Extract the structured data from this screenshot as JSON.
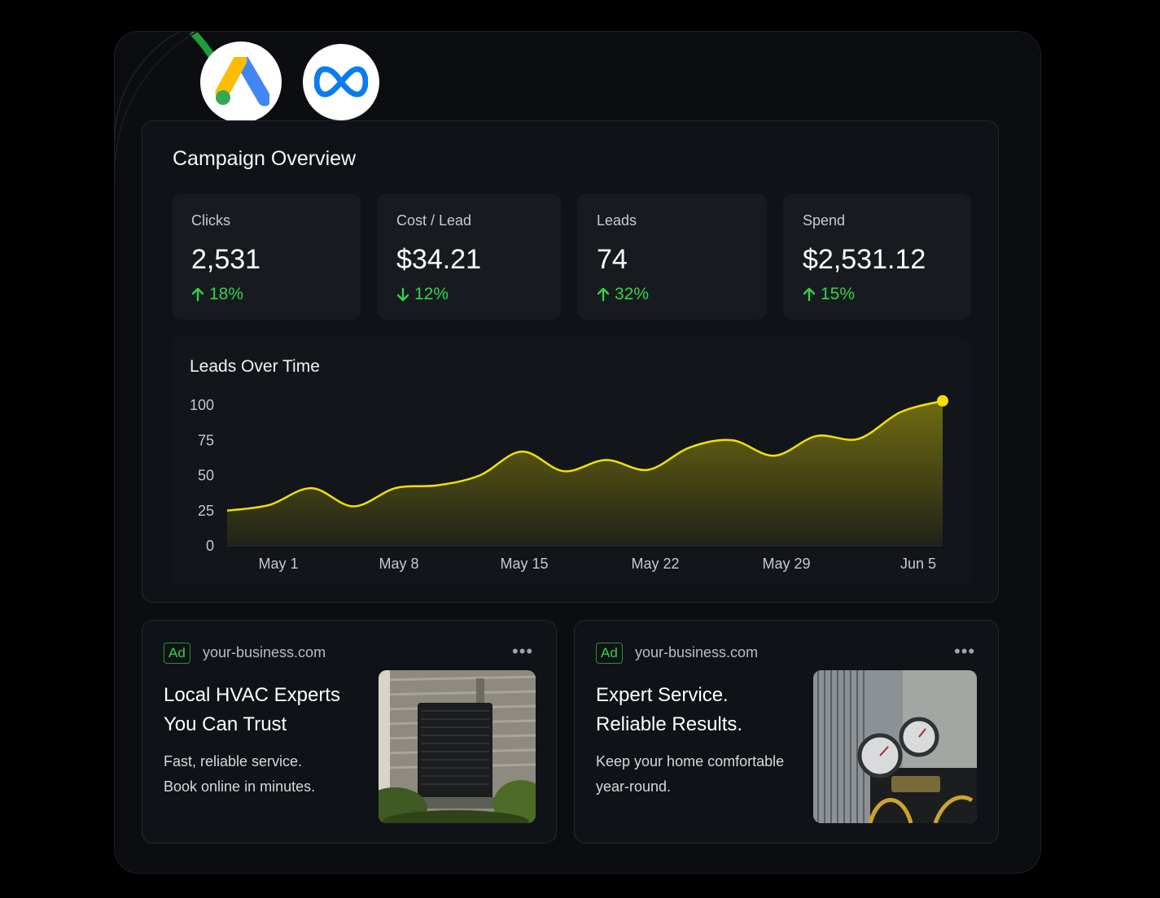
{
  "logos": [
    {
      "name": "google-ads-logo",
      "icon": "google-ads-icon"
    },
    {
      "name": "meta-logo",
      "icon": "meta-icon"
    }
  ],
  "overview": {
    "title": "Campaign Overview",
    "stats": [
      {
        "label": "Clicks",
        "value": "2,531",
        "delta": "18%",
        "direction": "up"
      },
      {
        "label": "Cost / Lead",
        "value": "$34.21",
        "delta": "12%",
        "direction": "down"
      },
      {
        "label": "Leads",
        "value": "74",
        "delta": "32%",
        "direction": "up"
      },
      {
        "label": "Spend",
        "value": "$2,531.12",
        "delta": "15%",
        "direction": "up"
      }
    ]
  },
  "chart": {
    "title": "Leads Over Time",
    "accent": "#f2e100",
    "positive_color": "#35d14b"
  },
  "chart_data": {
    "type": "area",
    "title": "Leads Over Time",
    "xlabel": "",
    "ylabel": "",
    "ylim": [
      0,
      100
    ],
    "yticks": [
      100,
      75,
      50,
      25,
      0
    ],
    "xtick_labels": [
      "May 1",
      "May 8",
      "May 15",
      "May 22",
      "May 29",
      "Jun 5"
    ],
    "grid": false,
    "legend": "none",
    "series": [
      {
        "values": [
          25,
          29,
          41,
          28,
          41,
          43,
          50,
          67,
          53,
          61,
          54,
          70,
          75,
          64,
          78,
          76,
          95,
          103
        ]
      }
    ]
  },
  "ads": [
    {
      "badge": "Ad",
      "domain": "your-business.com",
      "menu": "•••",
      "headline": [
        "Local HVAC Experts",
        "You Can Trust"
      ],
      "body": [
        "Fast, reliable service.",
        "Book online in minutes."
      ],
      "image": "hvac-outdoor-unit-photo"
    },
    {
      "badge": "Ad",
      "domain": "your-business.com",
      "menu": "•••",
      "headline": [
        "Expert Service.",
        "Reliable Results."
      ],
      "body": [
        "Keep your home comfortable",
        "year-round."
      ],
      "image": "hvac-gauges-photo"
    }
  ]
}
